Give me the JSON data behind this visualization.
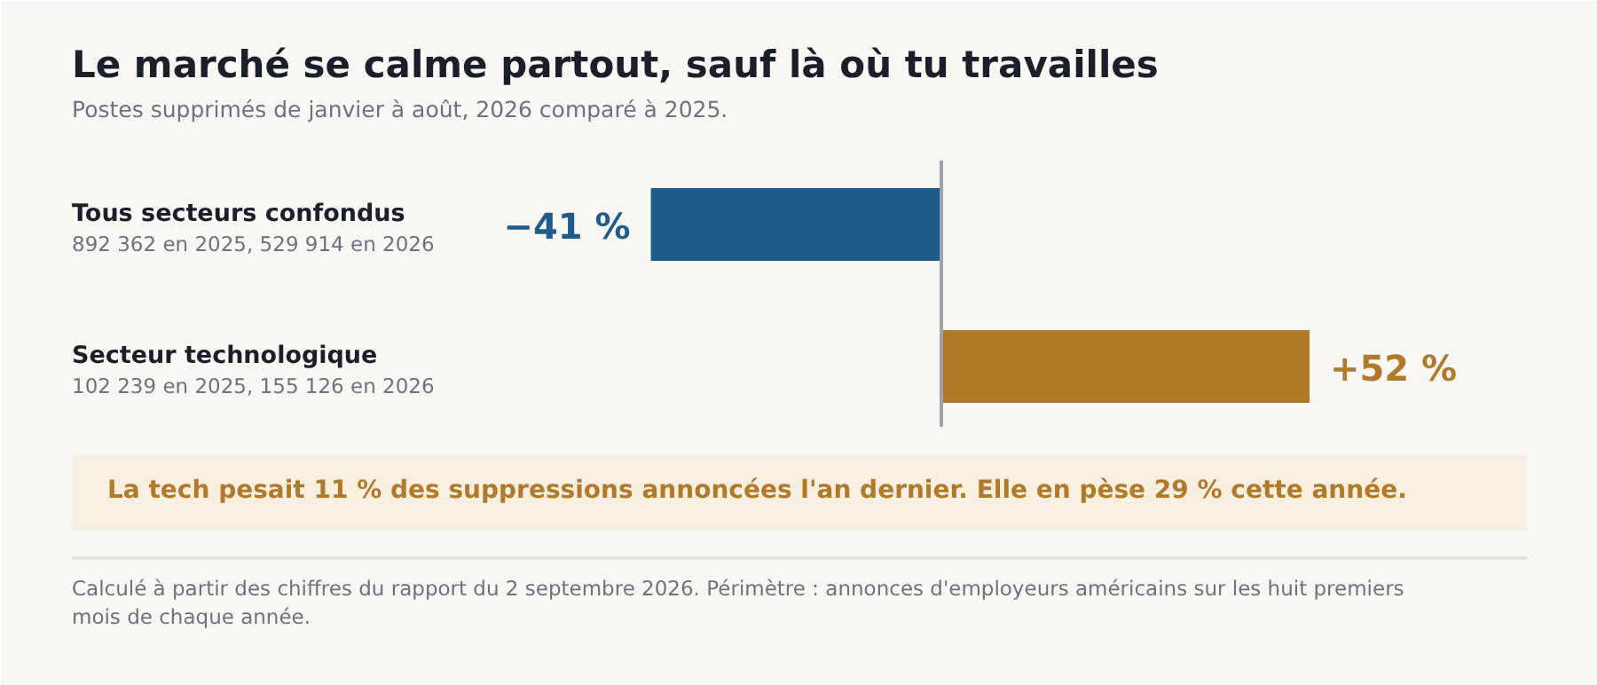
{
  "chart_data": {
    "type": "bar",
    "orientation": "horizontal",
    "title": "Le marché se calme partout, sauf là où tu travailles",
    "subtitle": "Postes supprimés de janvier à août, 2026 comparé à 2025.",
    "categories": [
      "Tous secteurs confondus",
      "Secteur technologique"
    ],
    "values": [
      -41,
      52
    ],
    "colors": [
      "#1f5c8b",
      "#b07a2a"
    ],
    "value_labels": [
      "−41 %",
      "+52 %"
    ],
    "annotations": [
      "892 362 en 2025, 529 914 en 2026",
      "102 239 en 2025, 155 126 en 2026",
      "La tech pesait 11 % des suppressions annoncées l'an dernier. Elle en pèse 29 % cette année.",
      "Calculé à partir des chiffres du rapport du 2 septembre 2026. Périmètre : annonces d'employeurs américains sur les huit premiers mois de chaque année."
    ],
    "grid": false
  }
}
